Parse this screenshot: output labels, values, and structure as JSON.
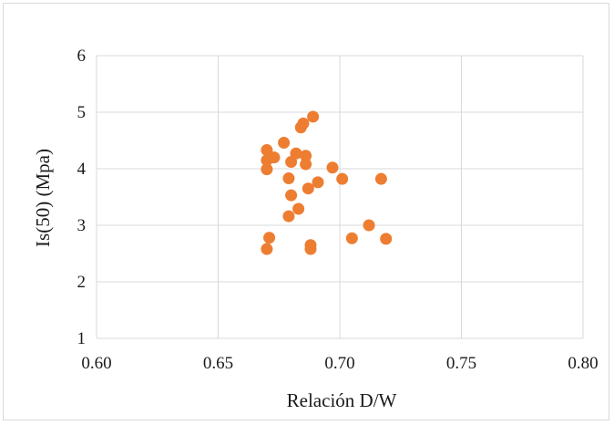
{
  "chart_data": {
    "type": "scatter",
    "xlabel": "Relación D/W",
    "ylabel": "Is(50) (Mpa)",
    "xlim": [
      0.6,
      0.8
    ],
    "ylim": [
      1,
      6
    ],
    "xticks": [
      "0.60",
      "0.65",
      "0.70",
      "0.75",
      "0.80"
    ],
    "yticks": [
      "1",
      "2",
      "3",
      "4",
      "5",
      "6"
    ],
    "grid": true,
    "legend": "none",
    "marker_color": "#ed7d31",
    "points": [
      {
        "x": 0.67,
        "y": 4.33
      },
      {
        "x": 0.67,
        "y": 4.15
      },
      {
        "x": 0.673,
        "y": 4.2
      },
      {
        "x": 0.67,
        "y": 3.99
      },
      {
        "x": 0.677,
        "y": 4.46
      },
      {
        "x": 0.684,
        "y": 4.73
      },
      {
        "x": 0.685,
        "y": 4.8
      },
      {
        "x": 0.689,
        "y": 4.92
      },
      {
        "x": 0.682,
        "y": 4.27
      },
      {
        "x": 0.686,
        "y": 4.23
      },
      {
        "x": 0.68,
        "y": 4.12
      },
      {
        "x": 0.686,
        "y": 4.08
      },
      {
        "x": 0.679,
        "y": 3.83
      },
      {
        "x": 0.697,
        "y": 4.02
      },
      {
        "x": 0.701,
        "y": 3.82
      },
      {
        "x": 0.717,
        "y": 3.82
      },
      {
        "x": 0.691,
        "y": 3.76
      },
      {
        "x": 0.687,
        "y": 3.65
      },
      {
        "x": 0.68,
        "y": 3.53
      },
      {
        "x": 0.683,
        "y": 3.29
      },
      {
        "x": 0.679,
        "y": 3.16
      },
      {
        "x": 0.712,
        "y": 3.0
      },
      {
        "x": 0.671,
        "y": 2.78
      },
      {
        "x": 0.705,
        "y": 2.77
      },
      {
        "x": 0.719,
        "y": 2.76
      },
      {
        "x": 0.688,
        "y": 2.65
      },
      {
        "x": 0.67,
        "y": 2.58
      },
      {
        "x": 0.688,
        "y": 2.58
      }
    ]
  }
}
